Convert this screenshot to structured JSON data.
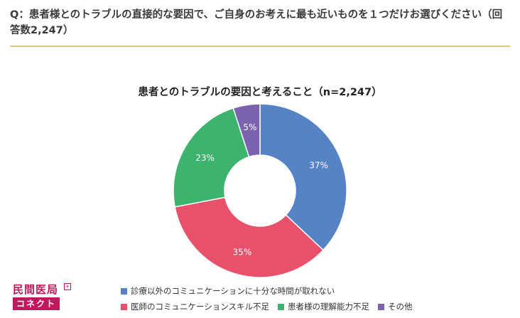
{
  "question": "Q：患者様とのトラブルの直接的な要因で、ご自身のお考えに最も近いものを１つだけお選びください（回答数2,247）",
  "logo": {
    "top": "民間医局",
    "plus": "+",
    "bottom": "コネクト"
  },
  "chart_data": {
    "type": "pie",
    "donut": true,
    "title": "患者とのトラブルの要因と考えること（n=2,247）",
    "legend_position": "bottom",
    "slices": [
      {
        "label": "診療以外のコミュニケーションに十分な時間が取れない",
        "value": 37,
        "display": "37%",
        "color": "#5583c6"
      },
      {
        "label": "医師のコミュニケーションスキル不足",
        "value": 35,
        "display": "35%",
        "color": "#e9516a"
      },
      {
        "label": "患者様の理解能力不足",
        "value": 23,
        "display": "23%",
        "color": "#3cb46e"
      },
      {
        "label": "その他",
        "value": 5,
        "display": "5%",
        "color": "#7b63b0"
      }
    ]
  }
}
